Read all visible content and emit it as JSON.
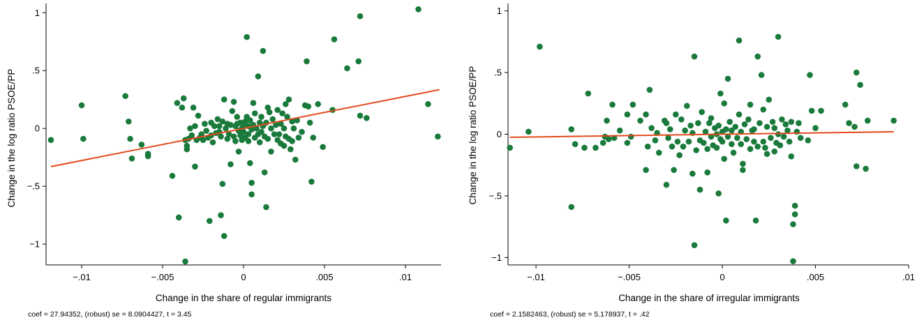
{
  "colors": {
    "points": "#1a7a3c",
    "fit_line": "#e24a1c",
    "axes": "#000000",
    "background": "#ffffff"
  },
  "chart_data": [
    {
      "type": "scatter",
      "xlabel": "Change in the share of regular immigrants",
      "ylabel": "Change in the log ratio PSOE/PP",
      "note": "coef = 27.94352, (robust) se = 8.0904427, t = 3.45",
      "xlim": [
        -0.0122,
        0.0122
      ],
      "ylim": [
        -1.18,
        1.08
      ],
      "xticks": [
        -0.01,
        -0.005,
        0,
        0.005,
        0.01
      ],
      "xtick_labels": [
        "−.01",
        "−.005",
        "0",
        ".005",
        ".01"
      ],
      "yticks": [
        -1,
        -0.5,
        0,
        0.5,
        1
      ],
      "ytick_labels": [
        "−1",
        "−.5",
        "0",
        ".5",
        "1"
      ],
      "grid": false,
      "fit_line": {
        "x": [
          -0.0119,
          0.0121
        ],
        "y": [
          -0.33,
          0.335
        ]
      },
      "points": [
        [
          -0.0119,
          -0.1
        ],
        [
          -0.01,
          0.2
        ],
        [
          -0.0099,
          -0.09
        ],
        [
          -0.0073,
          0.28
        ],
        [
          -0.0071,
          0.06
        ],
        [
          -0.007,
          -0.09
        ],
        [
          -0.0069,
          -0.26
        ],
        [
          -0.0063,
          -0.14
        ],
        [
          -0.0059,
          -0.22
        ],
        [
          -0.0059,
          -0.24
        ],
        [
          -0.0044,
          -0.41
        ],
        [
          -0.0041,
          0.22
        ],
        [
          -0.004,
          -0.77
        ],
        [
          -0.0038,
          0.18
        ],
        [
          -0.0037,
          0.26
        ],
        [
          -0.0036,
          -1.15
        ],
        [
          -0.0036,
          -0.1
        ],
        [
          -0.0035,
          -0.15
        ],
        [
          -0.0035,
          -0.18
        ],
        [
          -0.0034,
          -0.09
        ],
        [
          -0.0033,
          0.0
        ],
        [
          -0.0032,
          -0.06
        ],
        [
          -0.0031,
          0.18
        ],
        [
          -0.003,
          -0.33
        ],
        [
          -0.003,
          0.02
        ],
        [
          -0.0029,
          -0.1
        ],
        [
          -0.0028,
          0.11
        ],
        [
          -0.0027,
          -0.08
        ],
        [
          -0.0026,
          -0.05
        ],
        [
          -0.0025,
          -0.1
        ],
        [
          -0.0024,
          0.04
        ],
        [
          -0.0023,
          -0.02
        ],
        [
          -0.0022,
          -0.08
        ],
        [
          -0.0021,
          -0.8
        ],
        [
          -0.002,
          -0.06
        ],
        [
          -0.002,
          0.05
        ],
        [
          -0.0019,
          -0.12
        ],
        [
          -0.0018,
          0.02
        ],
        [
          -0.0017,
          -0.04
        ],
        [
          -0.0016,
          0.08
        ],
        [
          -0.0015,
          -0.03
        ],
        [
          -0.0015,
          0.02
        ],
        [
          -0.0014,
          -0.07
        ],
        [
          -0.0014,
          -0.75
        ],
        [
          -0.0013,
          -0.48
        ],
        [
          -0.0013,
          0.06
        ],
        [
          -0.0012,
          -0.93
        ],
        [
          -0.0012,
          0.25
        ],
        [
          -0.0011,
          0.0
        ],
        [
          -0.001,
          -0.09
        ],
        [
          -0.001,
          0.04
        ],
        [
          -0.0009,
          -0.05
        ],
        [
          -0.0008,
          -0.31
        ],
        [
          -0.0008,
          0.03
        ],
        [
          -0.0007,
          0.15
        ],
        [
          -0.0006,
          0.23
        ],
        [
          -0.0006,
          -0.07
        ],
        [
          -0.0005,
          0.02
        ],
        [
          -0.0005,
          -0.11
        ],
        [
          -0.0004,
          0.04
        ],
        [
          -0.0004,
          0.1
        ],
        [
          -0.0003,
          -0.02
        ],
        [
          -0.0003,
          -0.2
        ],
        [
          -0.0002,
          0.05
        ],
        [
          -0.0002,
          -0.06
        ],
        [
          -0.0001,
          -0.1
        ],
        [
          -0.0001,
          0.0
        ],
        [
          0.0,
          0.02
        ],
        [
          0.0,
          -0.03
        ],
        [
          0.0001,
          0.06
        ],
        [
          0.0001,
          -0.08
        ],
        [
          0.0002,
          0.79
        ],
        [
          0.0002,
          0.1
        ],
        [
          0.0003,
          -0.11
        ],
        [
          0.0003,
          0.02
        ],
        [
          0.0003,
          -0.05
        ],
        [
          0.0004,
          0.07
        ],
        [
          0.0004,
          -0.3
        ],
        [
          0.0005,
          -0.01
        ],
        [
          0.0005,
          -0.47
        ],
        [
          0.0005,
          -0.57
        ],
        [
          0.0006,
          0.22
        ],
        [
          0.0006,
          0.03
        ],
        [
          0.0007,
          -0.08
        ],
        [
          0.0007,
          0.13
        ],
        [
          0.0008,
          0.0
        ],
        [
          0.0009,
          0.45
        ],
        [
          0.0009,
          -0.05
        ],
        [
          0.001,
          0.05
        ],
        [
          0.001,
          -0.12
        ],
        [
          0.0011,
          0.1
        ],
        [
          0.0011,
          -0.03
        ],
        [
          0.0012,
          0.67
        ],
        [
          0.0012,
          0.02
        ],
        [
          0.0013,
          -0.38
        ],
        [
          0.0013,
          -0.07
        ],
        [
          0.0014,
          -0.68
        ],
        [
          0.0014,
          0.05
        ],
        [
          0.0015,
          0.18
        ],
        [
          0.0015,
          -0.09
        ],
        [
          0.0016,
          0.14
        ],
        [
          0.0017,
          0.0
        ],
        [
          0.0017,
          -0.2
        ],
        [
          0.0018,
          0.08
        ],
        [
          0.0019,
          -0.05
        ],
        [
          0.002,
          0.03
        ],
        [
          0.0021,
          0.16
        ],
        [
          0.0021,
          -0.1
        ],
        [
          0.0022,
          -0.05
        ],
        [
          0.0023,
          0.04
        ],
        [
          0.0023,
          -0.13
        ],
        [
          0.0024,
          0.13
        ],
        [
          0.0025,
          -0.15
        ],
        [
          0.0025,
          0.0
        ],
        [
          0.0026,
          0.21
        ],
        [
          0.0026,
          -0.07
        ],
        [
          0.0027,
          0.1
        ],
        [
          0.0028,
          -0.09
        ],
        [
          0.0028,
          0.25
        ],
        [
          0.0029,
          -0.18
        ],
        [
          0.003,
          0.06
        ],
        [
          0.003,
          -0.11
        ],
        [
          0.0031,
          0.0
        ],
        [
          0.0032,
          -0.27
        ],
        [
          0.0033,
          0.07
        ],
        [
          0.0034,
          -0.08
        ],
        [
          0.0036,
          -0.03
        ],
        [
          0.0038,
          0.2
        ],
        [
          0.0039,
          0.58
        ],
        [
          0.004,
          0.19
        ],
        [
          0.0041,
          0.05
        ],
        [
          0.0042,
          -0.46
        ],
        [
          0.0043,
          -0.08
        ],
        [
          0.0046,
          0.21
        ],
        [
          0.0049,
          -0.16
        ],
        [
          0.0055,
          0.16
        ],
        [
          0.0056,
          0.77
        ],
        [
          0.0064,
          0.52
        ],
        [
          0.0071,
          0.58
        ],
        [
          0.0072,
          0.97
        ],
        [
          0.0072,
          0.11
        ],
        [
          0.0076,
          0.09
        ],
        [
          0.0108,
          1.03
        ],
        [
          0.0114,
          0.21
        ],
        [
          0.012,
          -0.07
        ]
      ]
    },
    {
      "type": "scatter",
      "xlabel": "Change in the share of irregular immigrants",
      "ylabel": "Change in the log ratio PSOE/PP",
      "note": "coef = 2.1582463, (robust) se = 5.178937, t = .42",
      "xlim": [
        -0.0115,
        0.01
      ],
      "ylim": [
        -1.06,
        1.06
      ],
      "xticks": [
        -0.01,
        -0.005,
        0,
        0.005,
        0.01
      ],
      "xtick_labels": [
        "−.01",
        "−.005",
        "0",
        ".005",
        ".01"
      ],
      "yticks": [
        -1,
        -0.5,
        0,
        0.5,
        1
      ],
      "ytick_labels": [
        "−1",
        "−.5",
        "0",
        ".5",
        "1"
      ],
      "grid": false,
      "fit_line": {
        "x": [
          -0.0114,
          0.0092
        ],
        "y": [
          -0.025,
          0.02
        ]
      },
      "points": [
        [
          -0.0114,
          -0.11
        ],
        [
          -0.0104,
          0.02
        ],
        [
          -0.0098,
          0.71
        ],
        [
          -0.0081,
          0.04
        ],
        [
          -0.0081,
          -0.59
        ],
        [
          -0.0079,
          -0.08
        ],
        [
          -0.0074,
          -0.11
        ],
        [
          -0.0072,
          0.33
        ],
        [
          -0.0068,
          -0.11
        ],
        [
          -0.0064,
          -0.07
        ],
        [
          -0.0063,
          -0.02
        ],
        [
          -0.0062,
          0.11
        ],
        [
          -0.0061,
          -0.04
        ],
        [
          -0.0059,
          0.24
        ],
        [
          -0.0058,
          -0.03
        ],
        [
          -0.0055,
          0.03
        ],
        [
          -0.0051,
          -0.07
        ],
        [
          -0.0051,
          0.16
        ],
        [
          -0.0049,
          -0.02
        ],
        [
          -0.0048,
          0.24
        ],
        [
          -0.0044,
          0.11
        ],
        [
          -0.0041,
          -0.29
        ],
        [
          -0.0041,
          0.16
        ],
        [
          -0.004,
          -0.1
        ],
        [
          -0.0039,
          0.36
        ],
        [
          -0.0038,
          0.05
        ],
        [
          -0.0036,
          -0.05
        ],
        [
          -0.0035,
          0.01
        ],
        [
          -0.0034,
          -0.15
        ],
        [
          -0.0031,
          0.11
        ],
        [
          -0.003,
          -0.41
        ],
        [
          -0.003,
          0.09
        ],
        [
          -0.0029,
          -0.03
        ],
        [
          -0.0028,
          0.04
        ],
        [
          -0.0027,
          -0.1
        ],
        [
          -0.0026,
          -0.29
        ],
        [
          -0.0025,
          0.16
        ],
        [
          -0.0024,
          -0.06
        ],
        [
          -0.0023,
          -0.17
        ],
        [
          -0.0022,
          0.12
        ],
        [
          -0.0021,
          -0.1
        ],
        [
          -0.002,
          0.03
        ],
        [
          -0.0019,
          0.23
        ],
        [
          -0.0018,
          -0.06
        ],
        [
          -0.0017,
          0.07
        ],
        [
          -0.0016,
          -0.32
        ],
        [
          -0.0016,
          0.01
        ],
        [
          -0.0015,
          0.63
        ],
        [
          -0.0015,
          -0.9
        ],
        [
          -0.0014,
          -0.13
        ],
        [
          -0.0013,
          0.09
        ],
        [
          -0.0012,
          -0.05
        ],
        [
          -0.0012,
          -0.45
        ],
        [
          -0.0011,
          0.18
        ],
        [
          -0.001,
          -0.07
        ],
        [
          -0.0009,
          0.02
        ],
        [
          -0.0008,
          -0.31
        ],
        [
          -0.0008,
          -0.12
        ],
        [
          -0.0007,
          0.09
        ],
        [
          -0.0006,
          -0.02
        ],
        [
          -0.0006,
          0.13
        ],
        [
          -0.0005,
          -0.09
        ],
        [
          -0.0004,
          0.05
        ],
        [
          -0.0003,
          -0.11
        ],
        [
          -0.0003,
          0.0
        ],
        [
          -0.0002,
          0.07
        ],
        [
          -0.0002,
          -0.48
        ],
        [
          -0.0001,
          -0.04
        ],
        [
          -0.0001,
          0.33
        ],
        [
          0.0,
          0.02
        ],
        [
          0.0,
          -0.06
        ],
        [
          0.0001,
          0.25
        ],
        [
          0.0001,
          -0.2
        ],
        [
          0.0002,
          0.04
        ],
        [
          0.0002,
          -0.7
        ],
        [
          0.0003,
          -0.02
        ],
        [
          0.0003,
          0.45
        ],
        [
          0.0004,
          0.1
        ],
        [
          0.0005,
          -0.08
        ],
        [
          0.0005,
          0.03
        ],
        [
          0.0006,
          -0.15
        ],
        [
          0.0007,
          0.06
        ],
        [
          0.0008,
          -0.03
        ],
        [
          0.0009,
          0.76
        ],
        [
          0.0009,
          0.16
        ],
        [
          0.001,
          -0.08
        ],
        [
          0.001,
          0.02
        ],
        [
          0.0011,
          -0.24
        ],
        [
          0.0011,
          -0.29
        ],
        [
          0.0012,
          0.08
        ],
        [
          0.0013,
          -0.04
        ],
        [
          0.0014,
          0.12
        ],
        [
          0.0015,
          -0.12
        ],
        [
          0.0015,
          0.24
        ],
        [
          0.0016,
          0.03
        ],
        [
          0.0017,
          -0.06
        ],
        [
          0.0017,
          0.04
        ],
        [
          0.0018,
          -0.7
        ],
        [
          0.0019,
          0.63
        ],
        [
          0.0019,
          -0.1
        ],
        [
          0.002,
          0.09
        ],
        [
          0.0021,
          0.48
        ],
        [
          0.0022,
          -0.06
        ],
        [
          0.0022,
          0.2
        ],
        [
          0.0023,
          -0.11
        ],
        [
          0.0024,
          0.06
        ],
        [
          0.0024,
          -0.16
        ],
        [
          0.0025,
          0.28
        ],
        [
          0.0026,
          -0.03
        ],
        [
          0.0027,
          0.1
        ],
        [
          0.0028,
          -0.14
        ],
        [
          0.0028,
          0.05
        ],
        [
          0.0029,
          -0.07
        ],
        [
          0.003,
          0.79
        ],
        [
          0.003,
          0.0
        ],
        [
          0.0031,
          -0.09
        ],
        [
          0.0032,
          0.12
        ],
        [
          0.0033,
          -0.02
        ],
        [
          0.0034,
          0.08
        ],
        [
          0.0035,
          0.03
        ],
        [
          0.0036,
          -0.06
        ],
        [
          0.0037,
          0.1
        ],
        [
          0.0037,
          -0.18
        ],
        [
          0.0038,
          -1.03
        ],
        [
          0.0038,
          -0.73
        ],
        [
          0.0039,
          -0.65
        ],
        [
          0.0039,
          -0.58
        ],
        [
          0.004,
          0.02
        ],
        [
          0.0041,
          0.09
        ],
        [
          0.0042,
          -0.03
        ],
        [
          0.0046,
          -0.05
        ],
        [
          0.0047,
          0.48
        ],
        [
          0.0048,
          0.19
        ],
        [
          0.005,
          0.05
        ],
        [
          0.0053,
          0.19
        ],
        [
          0.0066,
          0.24
        ],
        [
          0.0068,
          0.09
        ],
        [
          0.0071,
          0.06
        ],
        [
          0.0072,
          0.5
        ],
        [
          0.0072,
          -0.26
        ],
        [
          0.0074,
          0.4
        ],
        [
          0.0077,
          -0.28
        ],
        [
          0.0078,
          0.11
        ],
        [
          0.0092,
          0.11
        ]
      ]
    }
  ]
}
